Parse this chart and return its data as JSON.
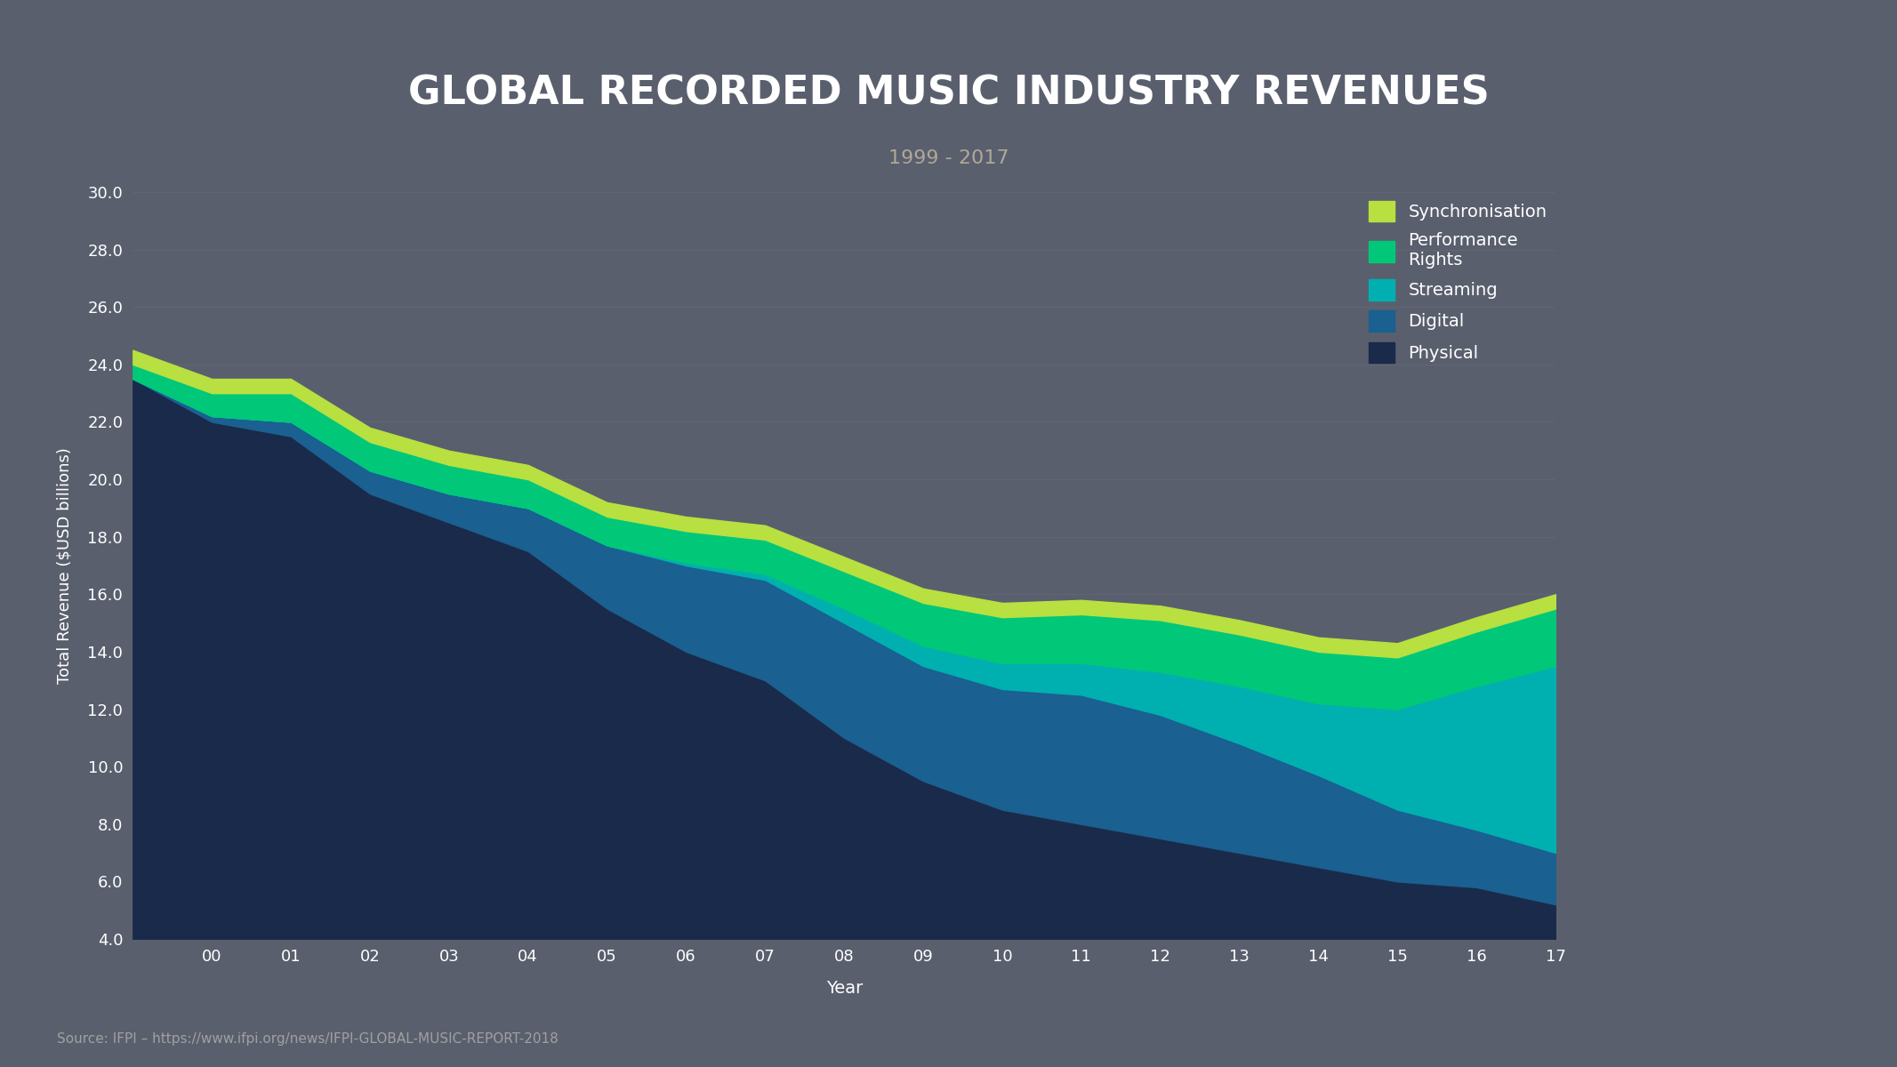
{
  "title": "GLOBAL RECORDED MUSIC INDUSTRY REVENUES",
  "subtitle": "1999 - 2017",
  "xlabel": "Year",
  "ylabel": "Total Revenue ($USD billions)",
  "source": "Source: IFPI – https://www.ifpi.org/news/IFPI-GLOBAL-MUSIC-REPORT-2018",
  "years": [
    1999,
    2000,
    2001,
    2002,
    2003,
    2004,
    2005,
    2006,
    2007,
    2008,
    2009,
    2010,
    2011,
    2012,
    2013,
    2014,
    2015,
    2016,
    2017
  ],
  "physical": [
    23.5,
    22.0,
    21.5,
    19.5,
    18.5,
    17.5,
    15.5,
    14.0,
    13.0,
    11.0,
    9.5,
    8.5,
    8.0,
    7.5,
    7.0,
    6.5,
    6.0,
    5.8,
    5.2
  ],
  "digital": [
    0.0,
    0.2,
    0.5,
    0.8,
    1.0,
    1.5,
    2.2,
    3.0,
    3.5,
    4.0,
    4.0,
    4.2,
    4.5,
    4.3,
    3.8,
    3.2,
    2.5,
    2.0,
    1.8
  ],
  "streaming": [
    0.0,
    0.0,
    0.0,
    0.0,
    0.0,
    0.0,
    0.0,
    0.1,
    0.2,
    0.5,
    0.7,
    0.9,
    1.1,
    1.5,
    2.0,
    2.5,
    3.5,
    5.0,
    6.5
  ],
  "performance_rights": [
    0.5,
    0.8,
    1.0,
    1.0,
    1.0,
    1.0,
    1.0,
    1.1,
    1.2,
    1.3,
    1.5,
    1.6,
    1.7,
    1.8,
    1.8,
    1.8,
    1.8,
    1.9,
    2.0
  ],
  "synchronisation": [
    0.5,
    0.5,
    0.5,
    0.5,
    0.5,
    0.5,
    0.5,
    0.5,
    0.5,
    0.5,
    0.5,
    0.5,
    0.5,
    0.5,
    0.5,
    0.5,
    0.5,
    0.5,
    0.5
  ],
  "colors": {
    "physical": "#1a2a4a",
    "digital": "#1a6090",
    "streaming": "#00b0b0",
    "performance_rights": "#00c878",
    "synchronisation": "#b8e040"
  },
  "background_color": "#5a5f6e",
  "text_color": "#ffffff",
  "subtitle_color": "#b0a898",
  "source_color": "#a0a0a0",
  "ylim": [
    4.0,
    30.0
  ],
  "yticks": [
    4.0,
    6.0,
    8.0,
    10.0,
    12.0,
    14.0,
    16.0,
    18.0,
    20.0,
    22.0,
    24.0,
    26.0,
    28.0,
    30.0
  ],
  "grid_color": "#6a6f7e"
}
